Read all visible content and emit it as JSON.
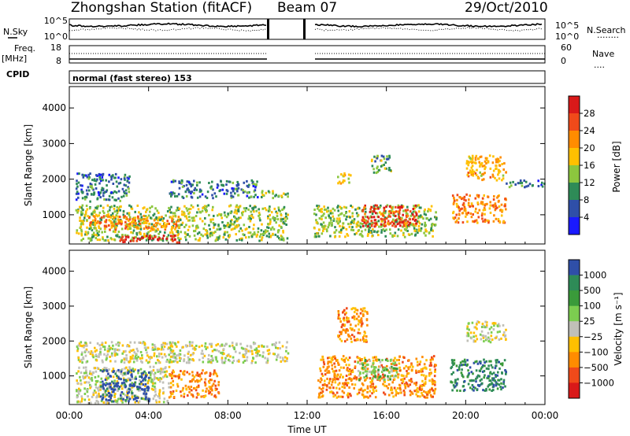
{
  "header": {
    "station": "Zhongshan Station (fitACF)",
    "beam": "Beam 07",
    "date": "29/Oct/2010"
  },
  "left_labels": {
    "nsky": "N.Sky",
    "freq": "Freq.",
    "freq_unit": "[MHz]",
    "cpid": "CPID"
  },
  "right_labels": {
    "nsearch": "N.Search",
    "nsearch_dots": "........",
    "nave": "Nave",
    "nave_dots": "...."
  },
  "cpid_text": "normal (fast stereo) 153",
  "noise_panel": {
    "left_ticks": [
      "10^5",
      "10^0"
    ],
    "right_ticks": [
      "10^5",
      "10^0"
    ]
  },
  "freq_panel": {
    "left_ticks": [
      "18",
      "8"
    ],
    "right_ticks": [
      "60",
      "0"
    ]
  },
  "chart_data": [
    {
      "type": "heatmap",
      "name": "power",
      "xlabel": "",
      "ylabel": "Slant Range [km]",
      "x_ticks": [
        "00:00",
        "04:00",
        "08:00",
        "12:00",
        "16:00",
        "20:00",
        "00:00"
      ],
      "xlim_hours": [
        0,
        24
      ],
      "ylim": [
        180,
        4600
      ],
      "y_ticks": [
        1000,
        2000,
        3000,
        4000
      ],
      "colorbar": {
        "label": "Power [dB]",
        "ticks": [
          "28",
          "24",
          "20",
          "16",
          "12",
          "8",
          "4"
        ],
        "colors": [
          "#d91919",
          "#f04a1a",
          "#ff8c00",
          "#ffc000",
          "#8cc63e",
          "#2e8b57",
          "#2f4fa8",
          "#1a1aff"
        ]
      },
      "blobs": [
        {
          "t0": 0.3,
          "t1": 11.0,
          "r0": 300,
          "r1": 1300,
          "v": 12
        },
        {
          "t0": 0.8,
          "t1": 5.5,
          "r0": 600,
          "r1": 1000,
          "v": 20
        },
        {
          "t0": 2.5,
          "t1": 5.5,
          "r0": 250,
          "r1": 450,
          "v": 28
        },
        {
          "t0": 0.3,
          "t1": 3.0,
          "r0": 1400,
          "r1": 2200,
          "v": 6
        },
        {
          "t0": 5.0,
          "t1": 9.5,
          "r0": 1500,
          "r1": 2000,
          "v": 6
        },
        {
          "t0": 9.5,
          "t1": 11.0,
          "r0": 1500,
          "r1": 1700,
          "v": 12
        },
        {
          "t0": 12.3,
          "t1": 18.5,
          "r0": 400,
          "r1": 1300,
          "v": 12
        },
        {
          "t0": 14.7,
          "t1": 17.5,
          "r0": 700,
          "r1": 1300,
          "v": 26
        },
        {
          "t0": 13.5,
          "t1": 14.2,
          "r0": 1900,
          "r1": 2200,
          "v": 16
        },
        {
          "t0": 15.2,
          "t1": 16.2,
          "r0": 2200,
          "r1": 2700,
          "v": 10
        },
        {
          "t0": 19.3,
          "t1": 22.0,
          "r0": 800,
          "r1": 1600,
          "v": 20
        },
        {
          "t0": 20.0,
          "t1": 22.0,
          "r0": 2000,
          "r1": 2700,
          "v": 18
        },
        {
          "t0": 22.0,
          "t1": 24.0,
          "r0": 1800,
          "r1": 2000,
          "v": 6
        }
      ]
    },
    {
      "type": "heatmap",
      "name": "velocity",
      "xlabel": "Time UT",
      "ylabel": "Slant Range [km]",
      "x_ticks": [
        "00:00",
        "04:00",
        "08:00",
        "12:00",
        "16:00",
        "20:00",
        "00:00"
      ],
      "xlim_hours": [
        0,
        24
      ],
      "ylim": [
        180,
        4600
      ],
      "y_ticks": [
        1000,
        2000,
        3000,
        4000
      ],
      "colorbar": {
        "label": "Velocity [m s⁻¹]",
        "ticks": [
          "1000",
          "500",
          "100",
          "25",
          "−25",
          "−100",
          "−500",
          "−1000"
        ],
        "colors": [
          "#2f4fa8",
          "#2e8b57",
          "#3a9a3a",
          "#7ccd50",
          "#c0c0b8",
          "#ffc000",
          "#ff8c00",
          "#f04a1a",
          "#d91919"
        ]
      },
      "blobs": [
        {
          "t0": 0.3,
          "t1": 5.0,
          "r0": 250,
          "r1": 1300,
          "v": 4
        },
        {
          "t0": 1.5,
          "t1": 4.0,
          "r0": 300,
          "r1": 1200,
          "v": 0
        },
        {
          "t0": 5.0,
          "t1": 7.5,
          "r0": 400,
          "r1": 1200,
          "v": 6
        },
        {
          "t0": 0.3,
          "t1": 11.0,
          "r0": 1400,
          "r1": 2000,
          "v": 4
        },
        {
          "t0": 12.5,
          "t1": 18.5,
          "r0": 400,
          "r1": 1600,
          "v": 6
        },
        {
          "t0": 14.5,
          "t1": 16.5,
          "r0": 900,
          "r1": 1500,
          "v": 3
        },
        {
          "t0": 19.2,
          "t1": 22.0,
          "r0": 600,
          "r1": 1500,
          "v": 1
        },
        {
          "t0": 20.0,
          "t1": 22.0,
          "r0": 2000,
          "r1": 2600,
          "v": 4
        },
        {
          "t0": 13.5,
          "t1": 15.0,
          "r0": 2000,
          "r1": 3000,
          "v": 6
        }
      ]
    }
  ]
}
